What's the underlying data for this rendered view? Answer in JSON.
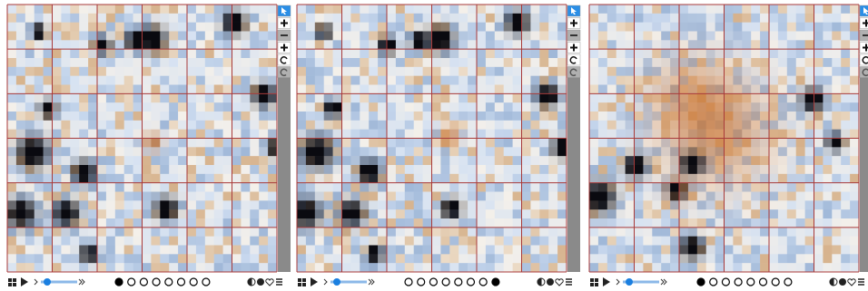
{
  "panels": [
    {
      "frames": 8,
      "active": 0
    },
    {
      "frames": 8,
      "active": 7
    },
    {
      "frames": 8,
      "active": 0
    }
  ]
}
